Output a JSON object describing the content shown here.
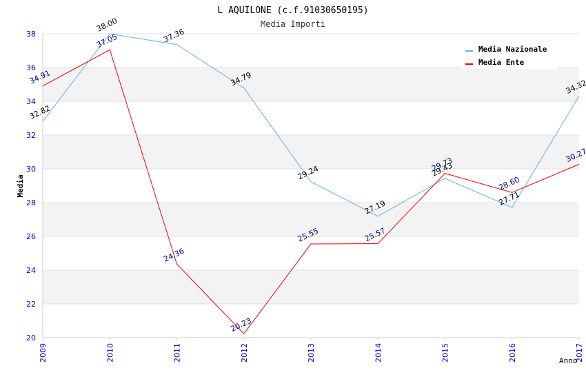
{
  "chart_data": {
    "type": "line",
    "title": "L AQUILONE (c.f.91030650195)",
    "subtitle": "Media Importi",
    "xlabel": "Anno",
    "ylabel": "Media",
    "ylim": [
      20,
      38
    ],
    "yticks": [
      "20",
      "22",
      "24",
      "26",
      "28",
      "30",
      "32",
      "34",
      "36",
      "38"
    ],
    "categories": [
      "2009",
      "2010",
      "2011",
      "2012",
      "2013",
      "2014",
      "2015",
      "2016",
      "2017"
    ],
    "legend_position": "top-right",
    "grid": true,
    "series": [
      {
        "name": "Media Nazionale",
        "color": "#6aaee8",
        "label_color": "#000000",
        "values": [
          32.82,
          38.0,
          37.36,
          34.79,
          29.24,
          27.19,
          29.43,
          27.71,
          34.32
        ],
        "labels": [
          "32.82",
          "38.00",
          "37.36",
          "34.79",
          "29.24",
          "27.19",
          "29.43",
          "27.71",
          "34.32"
        ]
      },
      {
        "name": "Media Ente",
        "color": "#ee0000",
        "label_color": "#000080",
        "values": [
          34.91,
          37.05,
          24.36,
          20.23,
          25.55,
          25.57,
          29.73,
          28.6,
          30.27
        ],
        "labels": [
          "34.91",
          "37.05",
          "24.36",
          "20.23",
          "25.55",
          "25.57",
          "29.73",
          "28.60",
          "30.27"
        ]
      }
    ]
  }
}
